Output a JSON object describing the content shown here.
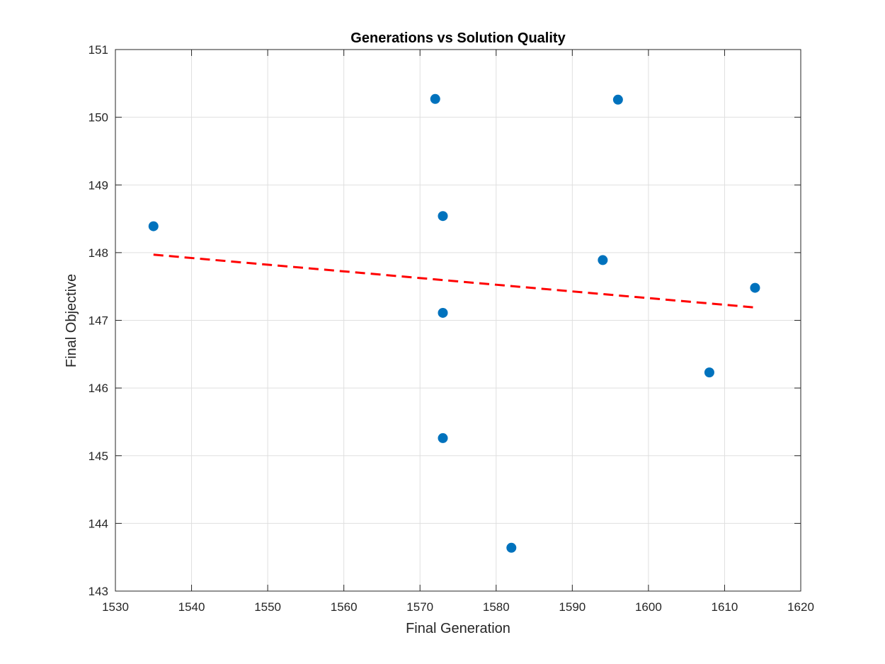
{
  "chart_data": {
    "type": "scatter",
    "title": "Generations vs Solution Quality",
    "xlabel": "Final Generation",
    "ylabel": "Final Objective",
    "xlim": [
      1530,
      1620
    ],
    "ylim": [
      143,
      151
    ],
    "xticks": [
      1530,
      1540,
      1550,
      1560,
      1570,
      1580,
      1590,
      1600,
      1610,
      1620
    ],
    "yticks": [
      143,
      144,
      145,
      146,
      147,
      148,
      149,
      150,
      151
    ],
    "grid": true,
    "series": [
      {
        "type": "scatter",
        "color": "#0072BD",
        "points": [
          {
            "x": 1535,
            "y": 148.39
          },
          {
            "x": 1572,
            "y": 150.27
          },
          {
            "x": 1573,
            "y": 148.54
          },
          {
            "x": 1573,
            "y": 147.11
          },
          {
            "x": 1573,
            "y": 145.26
          },
          {
            "x": 1582,
            "y": 143.64
          },
          {
            "x": 1594,
            "y": 147.89
          },
          {
            "x": 1596,
            "y": 150.26
          },
          {
            "x": 1608,
            "y": 146.23
          },
          {
            "x": 1614,
            "y": 147.48
          }
        ]
      },
      {
        "type": "line",
        "style": "dashed",
        "color": "#FF0000",
        "points": [
          {
            "x": 1535,
            "y": 147.97
          },
          {
            "x": 1614,
            "y": 147.19
          }
        ]
      }
    ]
  }
}
